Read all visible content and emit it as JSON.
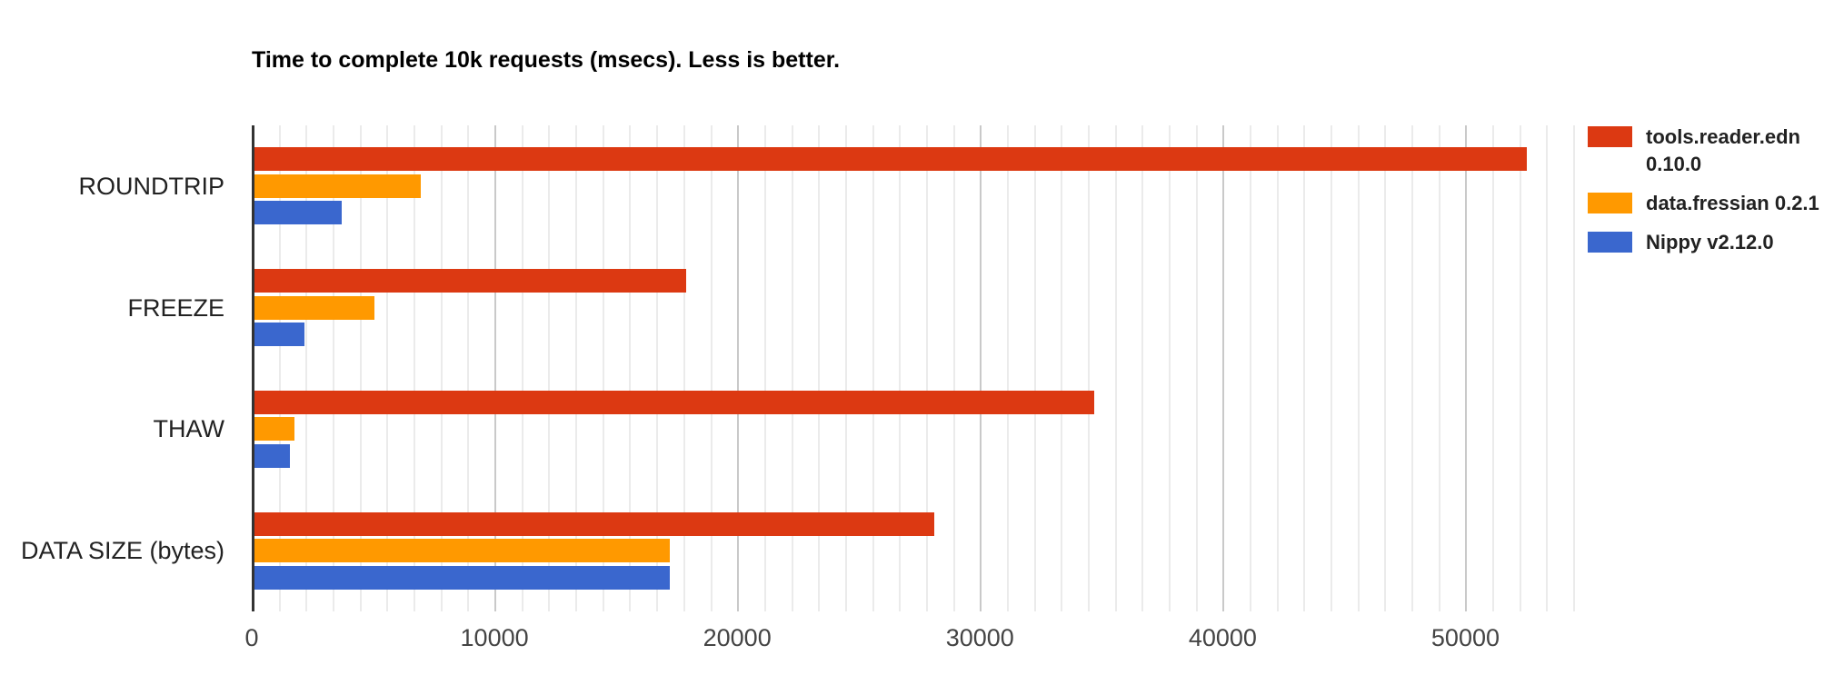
{
  "title": "Time to complete 10k requests (msecs). Less is better.",
  "chart_data": {
    "type": "bar",
    "orientation": "horizontal",
    "title": "Time to complete 10k requests (msecs). Less is better.",
    "categories": [
      "ROUNDTRIP",
      "FREEZE",
      "THAW",
      "DATA SIZE (bytes)"
    ],
    "series": [
      {
        "name": "tools.reader.edn 0.10.0",
        "color": "#dc3912",
        "values": [
          52400,
          17800,
          34600,
          28000
        ]
      },
      {
        "name": "data.fressian 0.2.1",
        "color": "#ff9900",
        "values": [
          6850,
          4950,
          1650,
          17100
        ]
      },
      {
        "name": "Nippy v2.12.0",
        "color": "#3a67ce",
        "values": [
          3600,
          2050,
          1450,
          17100
        ]
      }
    ],
    "xlabel": "",
    "ylabel": "",
    "x_ticks": [
      0,
      10000,
      20000,
      30000,
      40000,
      50000
    ],
    "x_tick_labels": [
      "0",
      "10000",
      "20000",
      "30000",
      "40000",
      "50000"
    ],
    "xlim": [
      0,
      54850
    ],
    "x_minor_step": 1111.11,
    "grid": true,
    "legend_position": "right"
  },
  "style": {
    "axis_line_color": "#333333",
    "major_grid_color": "#c9c9c9",
    "minor_grid_color": "#ebebeb",
    "tick_label_color": "#444444",
    "category_label_color": "#222222",
    "legend_text_color": "#222222",
    "background": "#ffffff"
  }
}
